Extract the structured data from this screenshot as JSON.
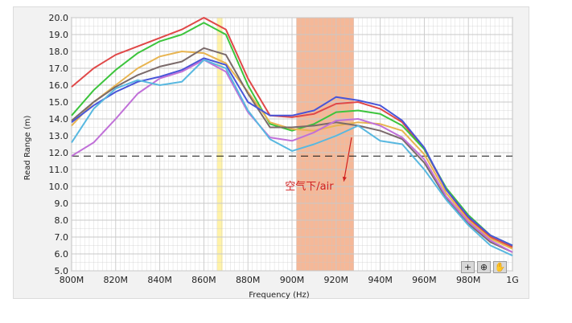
{
  "chart_data": {
    "type": "line",
    "xlabel": "Frequency (Hz)",
    "ylabel": "Read Range (m)",
    "xlim": [
      800,
      1000
    ],
    "ylim": [
      5.0,
      20.0
    ],
    "x_ticks": [
      800,
      820,
      840,
      860,
      880,
      900,
      920,
      940,
      960,
      980,
      1000
    ],
    "x_tick_labels": [
      "800M",
      "820M",
      "840M",
      "860M",
      "880M",
      "900M",
      "920M",
      "940M",
      "960M",
      "980M",
      "1G"
    ],
    "y_ticks": [
      5,
      6,
      7,
      8,
      9,
      10,
      11,
      12,
      13,
      14,
      15,
      16,
      17,
      18,
      19,
      20
    ],
    "y_tick_labels": [
      "5.0",
      "6.0",
      "7.0",
      "8.0",
      "9.0",
      "10.0",
      "11.0",
      "12.0",
      "13.0",
      "14.0",
      "15.0",
      "16.0",
      "17.0",
      "18.0",
      "19.0",
      "20.0"
    ],
    "x": [
      800,
      810,
      820,
      830,
      840,
      850,
      860,
      870,
      880,
      890,
      900,
      910,
      920,
      930,
      940,
      950,
      960,
      970,
      980,
      990,
      1000
    ],
    "series": [
      {
        "color": "#e04848",
        "values": [
          15.9,
          17.0,
          17.8,
          18.3,
          18.8,
          19.3,
          20.0,
          19.3,
          16.4,
          14.2,
          14.1,
          14.3,
          14.9,
          15.0,
          14.6,
          13.8,
          12.2,
          9.8,
          8.1,
          7.0,
          6.4
        ]
      },
      {
        "color": "#3cc43c",
        "values": [
          14.2,
          15.7,
          16.9,
          17.9,
          18.6,
          19.0,
          19.7,
          19.0,
          16.0,
          13.7,
          13.3,
          13.7,
          14.4,
          14.5,
          14.3,
          13.6,
          12.2,
          9.9,
          8.3,
          7.1,
          6.5
        ]
      },
      {
        "color": "#e8b450",
        "values": [
          13.6,
          15.0,
          16.0,
          17.0,
          17.7,
          18.0,
          17.9,
          17.3,
          15.6,
          13.8,
          13.4,
          13.3,
          13.6,
          13.8,
          13.7,
          13.3,
          11.9,
          9.6,
          8.0,
          6.9,
          6.3
        ]
      },
      {
        "color": "#7a6a6a",
        "values": [
          13.9,
          15.0,
          15.9,
          16.6,
          17.1,
          17.4,
          18.2,
          17.8,
          15.5,
          13.5,
          13.5,
          13.6,
          13.8,
          13.6,
          13.3,
          12.8,
          11.4,
          9.3,
          7.8,
          6.7,
          6.1
        ]
      },
      {
        "color": "#4855d8",
        "values": [
          13.8,
          14.8,
          15.6,
          16.2,
          16.5,
          16.9,
          17.6,
          17.2,
          15.0,
          14.2,
          14.2,
          14.5,
          15.3,
          15.1,
          14.8,
          13.9,
          12.3,
          9.8,
          8.2,
          7.1,
          6.5
        ]
      },
      {
        "color": "#c070d8",
        "values": [
          11.8,
          12.6,
          14.0,
          15.5,
          16.4,
          16.8,
          17.5,
          16.8,
          14.4,
          12.9,
          12.7,
          13.2,
          13.9,
          14.0,
          13.6,
          12.9,
          11.6,
          9.4,
          7.9,
          6.8,
          6.1
        ]
      },
      {
        "color": "#58b8e0",
        "values": [
          12.6,
          14.6,
          15.8,
          16.3,
          16.0,
          16.2,
          17.5,
          17.0,
          14.5,
          12.8,
          12.1,
          12.5,
          13.0,
          13.6,
          12.7,
          12.5,
          11.0,
          9.2,
          7.7,
          6.5,
          5.9
        ]
      }
    ],
    "reference_line": {
      "y": 11.8,
      "style": "dashed",
      "color": "#111111"
    },
    "bands": [
      {
        "x": [
          866,
          868.5
        ],
        "color": "#fff2a8"
      },
      {
        "x": [
          902,
          928
        ],
        "color": "#f5b898"
      }
    ],
    "annotation": {
      "text": "空气下/air",
      "x": 910,
      "y": 9.8,
      "color": "#d02020",
      "arrow_to": [
        923.5,
        10.3
      ]
    },
    "grid": true,
    "grid_color": "#c8c8c8",
    "plot_background": "#ffffff"
  },
  "toolbar": {
    "cursor_icon": "+",
    "zoom_icon": "⊕",
    "pan_icon": "✋"
  }
}
